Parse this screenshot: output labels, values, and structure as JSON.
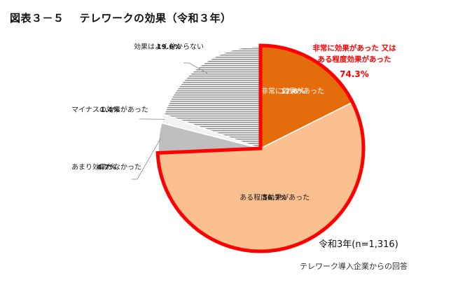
{
  "figure": {
    "number": "図表３－５",
    "title": "テレワークの効果（令和３年）"
  },
  "chart_data": {
    "type": "pie",
    "categories": [
      "非常に効果があった",
      "ある程度効果があった",
      "あまり効果がなかった",
      "マイナスの効果があった",
      "効果はよく分からない"
    ],
    "values": [
      17.6,
      56.7,
      4.7,
      1.4,
      19.6
    ],
    "value_labels": [
      "17.6%",
      "56.7%",
      "4.7%",
      "1.4%",
      "19.6%"
    ],
    "colors": [
      "#E46C0A",
      "#FAC090",
      "#BFBFBF",
      "#F2F2F2",
      "#A6A6A6"
    ],
    "start_angle_deg": 0,
    "direction": "clockwise",
    "highlight": {
      "label_line1": "非常に効果があった 又は",
      "label_line2": "ある程度効果があった",
      "value": "74.3%",
      "color": "#FF0000",
      "includes": [
        0,
        1
      ]
    },
    "sample_label": "令和3年(n=1,316)",
    "legend": "none"
  },
  "note": "テレワーク導入企業からの回答"
}
